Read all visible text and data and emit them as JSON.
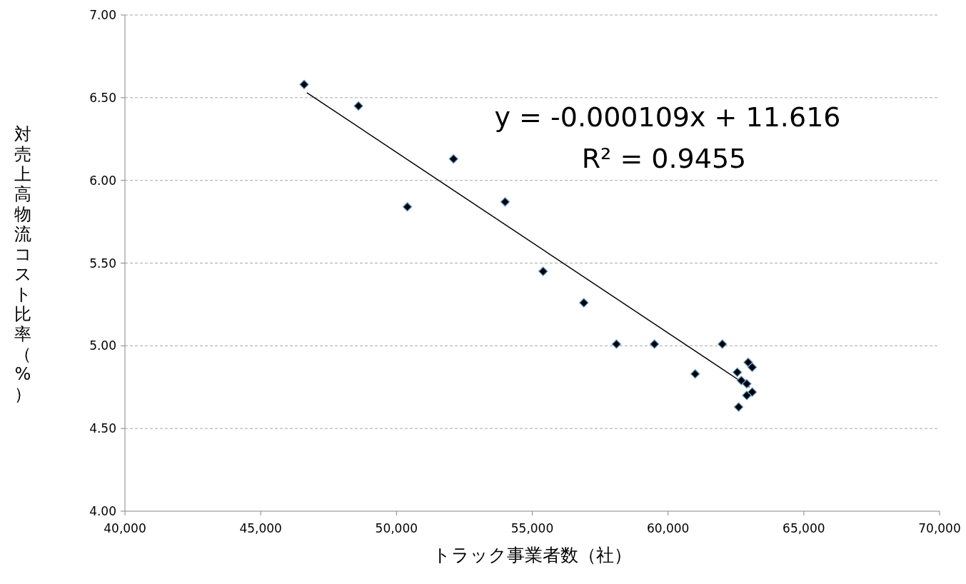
{
  "chart_data": {
    "type": "scatter",
    "xlabel": "トラック事業者数（社）",
    "ylabel": "対売上高物流コスト比率（%）",
    "annotations": [
      "y = -0.000109x + 11.616",
      "R² = 0.9455"
    ],
    "xlim": [
      40000,
      70000
    ],
    "xticks": [
      {
        "value": 40000,
        "label": "40,000"
      },
      {
        "value": 45000,
        "label": "45,000"
      },
      {
        "value": 50000,
        "label": "50,000"
      },
      {
        "value": 55000,
        "label": "55,000"
      },
      {
        "value": 60000,
        "label": "60,000"
      },
      {
        "value": 65000,
        "label": "65,000"
      },
      {
        "value": 70000,
        "label": "70,000"
      }
    ],
    "ylim": [
      4,
      7
    ],
    "yticks": [
      {
        "value": 4,
        "label": "4.00"
      },
      {
        "value": 4.5,
        "label": "4.50"
      },
      {
        "value": 5,
        "label": "5.00"
      },
      {
        "value": 5.5,
        "label": "5.50"
      },
      {
        "value": 6,
        "label": "6.00"
      },
      {
        "value": 6.5,
        "label": "6.50"
      },
      {
        "value": 7,
        "label": "7.00"
      }
    ],
    "grid": "y",
    "marker": "diamond",
    "series": [
      {
        "type": "scatter",
        "color": "#000000",
        "x": [
          46600,
          48600,
          50400,
          52100,
          54000,
          55400,
          56900,
          58100,
          59500,
          61000,
          62000,
          62950,
          63100,
          62550,
          62700,
          62900,
          63100,
          62900,
          62600
        ],
        "values": [
          6.58,
          6.45,
          5.84,
          6.13,
          5.87,
          5.45,
          5.26,
          5.01,
          5.01,
          4.83,
          5.01,
          4.9,
          4.87,
          4.84,
          4.79,
          4.77,
          4.72,
          4.7,
          4.63
        ]
      },
      {
        "type": "line",
        "color": "#000000",
        "line_style": "solid",
        "marker": "none",
        "x": [
          46700,
          63000
        ],
        "values": [
          6.53,
          4.75
        ]
      }
    ]
  }
}
